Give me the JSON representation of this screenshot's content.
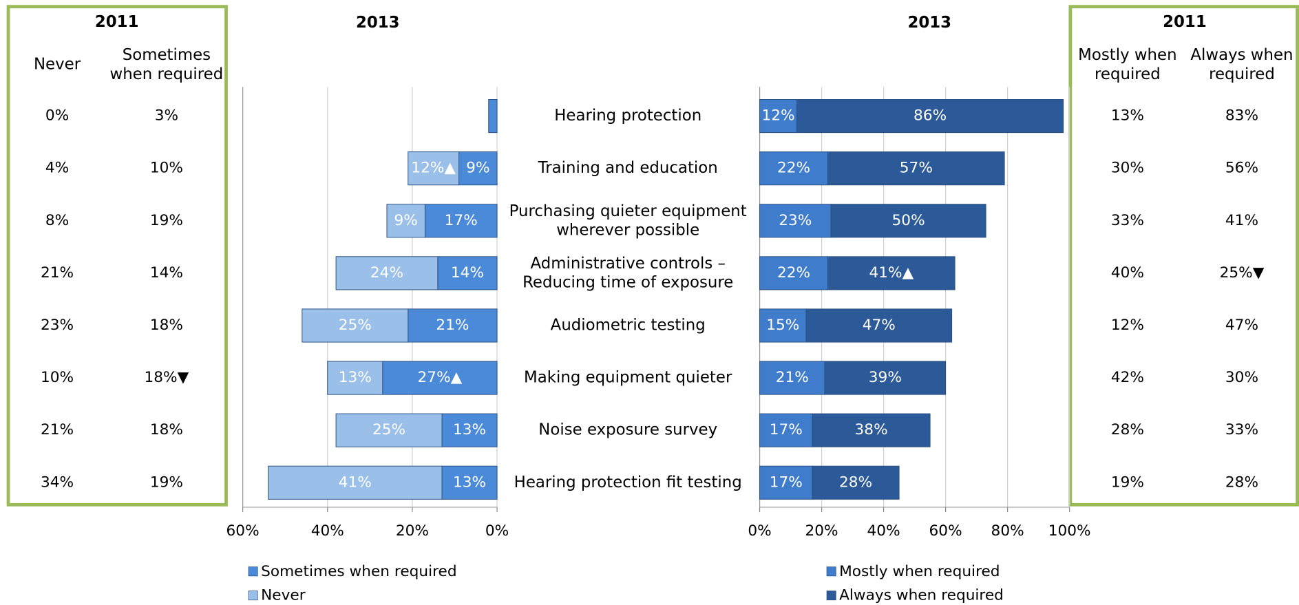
{
  "chart_data": [
    {
      "type": "bar",
      "orientation": "horizontal",
      "stacked": true,
      "title": "2013",
      "categories": [
        "Hearing protection",
        "Training and education",
        "Purchasing quieter equipment\nwherever possible",
        "Administrative controls –\nReducing time of exposure",
        "Audiometric testing",
        "Making equipment quieter",
        "Noise exposure survey",
        "Hearing protection fit testing"
      ],
      "series": [
        {
          "name": "Sometimes when required",
          "color": "#4a8ad8",
          "values": [
            2,
            9,
            17,
            14,
            21,
            27,
            13,
            13
          ],
          "value_labels": [
            null,
            "9%",
            "17%",
            "14%",
            "21%",
            "27%▲",
            "13%",
            "13%"
          ]
        },
        {
          "name": "Never",
          "color": "#9ac0ea",
          "values": [
            0,
            12,
            9,
            24,
            25,
            13,
            25,
            41
          ],
          "value_labels": [
            null,
            "12%▲",
            "9%",
            "24%",
            "25%",
            "13%",
            "25%",
            "41%"
          ]
        }
      ],
      "xlim": [
        60,
        0
      ],
      "xticks": [
        {
          "value": 60,
          "label": "60%"
        },
        {
          "value": 40,
          "label": "40%"
        },
        {
          "value": 20,
          "label": "20%"
        },
        {
          "value": 0,
          "label": "0%"
        }
      ],
      "grid": true
    },
    {
      "type": "bar",
      "orientation": "horizontal",
      "stacked": true,
      "title": "2013",
      "series": [
        {
          "name": "Mostly when required",
          "color": "#3f7ccc",
          "values": [
            12,
            22,
            23,
            22,
            15,
            21,
            17,
            17
          ],
          "value_labels": [
            "12%",
            "22%",
            "23%",
            "22%",
            "15%",
            "21%",
            "17%",
            "17%"
          ]
        },
        {
          "name": "Always when required",
          "color": "#2c5a98",
          "values": [
            86,
            57,
            50,
            41,
            47,
            39,
            38,
            28
          ],
          "value_labels": [
            "86%",
            "57%",
            "50%",
            "41%▲",
            "47%",
            "39%",
            "38%",
            "28%"
          ]
        }
      ],
      "xlim": [
        0,
        100
      ],
      "xticks": [
        {
          "value": 0,
          "label": "0%"
        },
        {
          "value": 20,
          "label": "20%"
        },
        {
          "value": 40,
          "label": "40%"
        },
        {
          "value": 60,
          "label": "60%"
        },
        {
          "value": 80,
          "label": "80%"
        },
        {
          "value": 100,
          "label": "100%"
        }
      ],
      "grid": true
    }
  ],
  "tables": [
    {
      "title": "2011",
      "columns": [
        "Never",
        "Sometimes\nwhen required"
      ],
      "rows": [
        [
          "0%",
          "3%"
        ],
        [
          "4%",
          "10%"
        ],
        [
          "8%",
          "19%"
        ],
        [
          "21%",
          "14%"
        ],
        [
          "23%",
          "18%"
        ],
        [
          "10%",
          "18%▼"
        ],
        [
          "21%",
          "18%"
        ],
        [
          "34%",
          "19%"
        ]
      ]
    },
    {
      "title": "2011",
      "columns": [
        "Mostly when\nrequired",
        "Always when\nrequired"
      ],
      "rows": [
        [
          "13%",
          "83%"
        ],
        [
          "30%",
          "56%"
        ],
        [
          "33%",
          "41%"
        ],
        [
          "40%",
          "25%▼"
        ],
        [
          "12%",
          "47%"
        ],
        [
          "42%",
          "30%"
        ],
        [
          "28%",
          "33%"
        ],
        [
          "19%",
          "28%"
        ]
      ]
    }
  ]
}
